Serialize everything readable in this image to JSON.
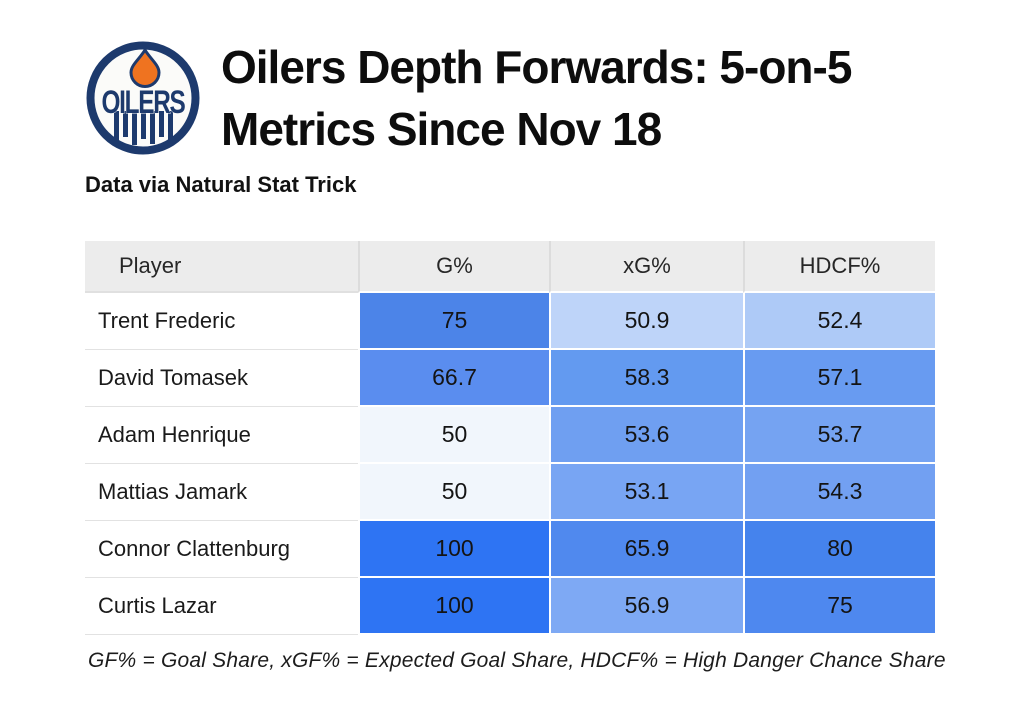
{
  "header": {
    "title_full": "Oilers Depth Forwards: 5-on-5 Metrics Since Nov 18",
    "title_line1": "Oilers Depth Forwards: 5-on-5",
    "title_line2": "Metrics Since Nov 18",
    "subtitle": "Data via Natural Stat Trick",
    "logo": {
      "team": "Edmonton Oilers",
      "wordmark": "OILERS",
      "navy": "#1d3a6d",
      "orange": "#ef7320"
    }
  },
  "chart_data": {
    "type": "table",
    "title": "Oilers Depth Forwards: 5-on-5 Metrics Since Nov 18",
    "subtitle": "Data via Natural Stat Trick",
    "columns": [
      "Player",
      "G%",
      "xG%",
      "HDCF%"
    ],
    "heatmap_scale": {
      "low_value": 50,
      "high_value": 100,
      "low_color": "#f1f6fc",
      "high_color": "#2e74f3"
    },
    "rows": [
      {
        "player": "Trent Frederic",
        "values": [
          "75",
          "50.9",
          "52.4"
        ],
        "numeric": [
          75,
          50.9,
          52.4
        ],
        "colors": [
          "#4c84e8",
          "#bed4f9",
          "#aecaf7"
        ]
      },
      {
        "player": "David Tomasek",
        "values": [
          "66.7",
          "58.3",
          "57.1"
        ],
        "numeric": [
          66.7,
          58.3,
          57.1
        ],
        "colors": [
          "#5a8def",
          "#639af0",
          "#689bf1"
        ]
      },
      {
        "player": "Adam Henrique",
        "values": [
          "50",
          "53.6",
          "53.7"
        ],
        "numeric": [
          50,
          53.6,
          53.7
        ],
        "colors": [
          "#f1f6fc",
          "#6f9ff1",
          "#75a3f2"
        ]
      },
      {
        "player": "Mattias Jamark",
        "values": [
          "50",
          "53.1",
          "54.3"
        ],
        "numeric": [
          50,
          53.1,
          54.3
        ],
        "colors": [
          "#f1f6fc",
          "#78a5f3",
          "#72a0f2"
        ]
      },
      {
        "player": "Connor Clattenburg",
        "values": [
          "100",
          "65.9",
          "80"
        ],
        "numeric": [
          100,
          65.9,
          80
        ],
        "colors": [
          "#2e74f3",
          "#5089ee",
          "#4583ed"
        ]
      },
      {
        "player": "Curtis Lazar",
        "values": [
          "100",
          "56.9",
          "75"
        ],
        "numeric": [
          100,
          56.9,
          75
        ],
        "colors": [
          "#2e74f3",
          "#7ea9f4",
          "#4e88ef"
        ]
      }
    ]
  },
  "footnote": "GF% = Goal Share, xGF% = Expected Goal Share, HDCF% = High Danger Chance Share"
}
